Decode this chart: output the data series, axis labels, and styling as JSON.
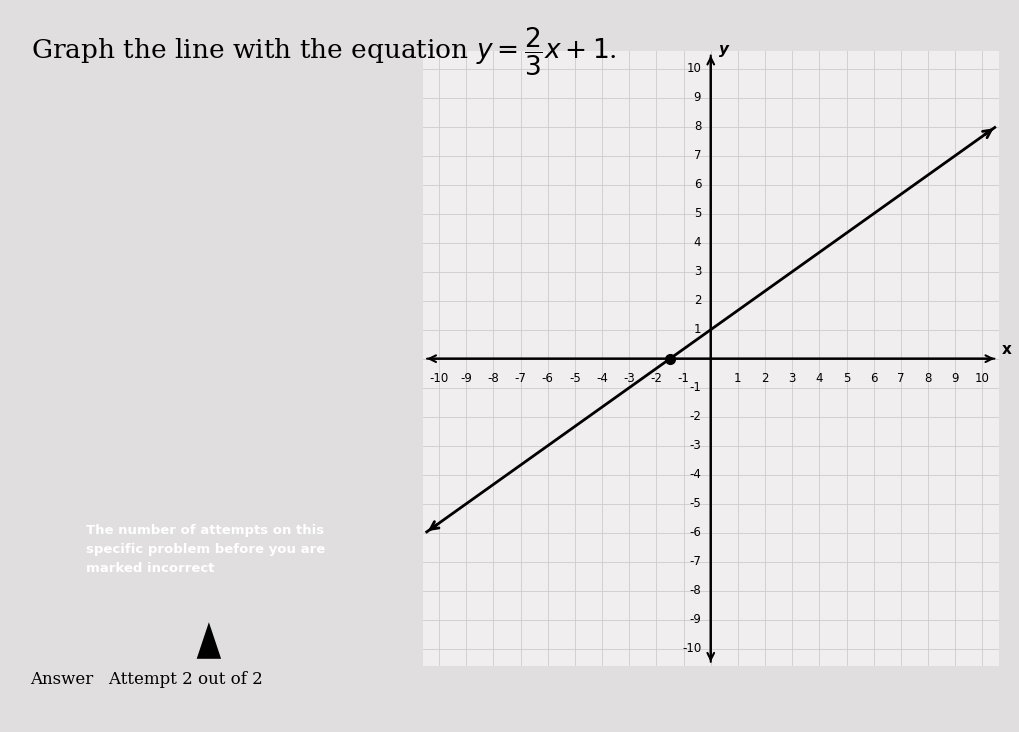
{
  "title_plain": "Graph the line with the equation ",
  "title_math": "$y = \\dfrac{2}{3}x + 1$.",
  "slope": 0.6667,
  "intercept": 1,
  "xlim": [
    -10,
    10
  ],
  "ylim": [
    -10,
    10
  ],
  "x_label": "x",
  "y_label": "y",
  "grid_color": "#cccccc",
  "line_color": "#000000",
  "bg_color": "#e0dede",
  "plot_bg_color": "#f0eeee",
  "title_fontsize": 19,
  "tick_fontsize": 9,
  "dot_color": "#000000",
  "box_text": "The number of attempts on this\nspecific problem before you are\nmarked incorrect",
  "answer_text": "Answer   Attempt 2 out of 2"
}
